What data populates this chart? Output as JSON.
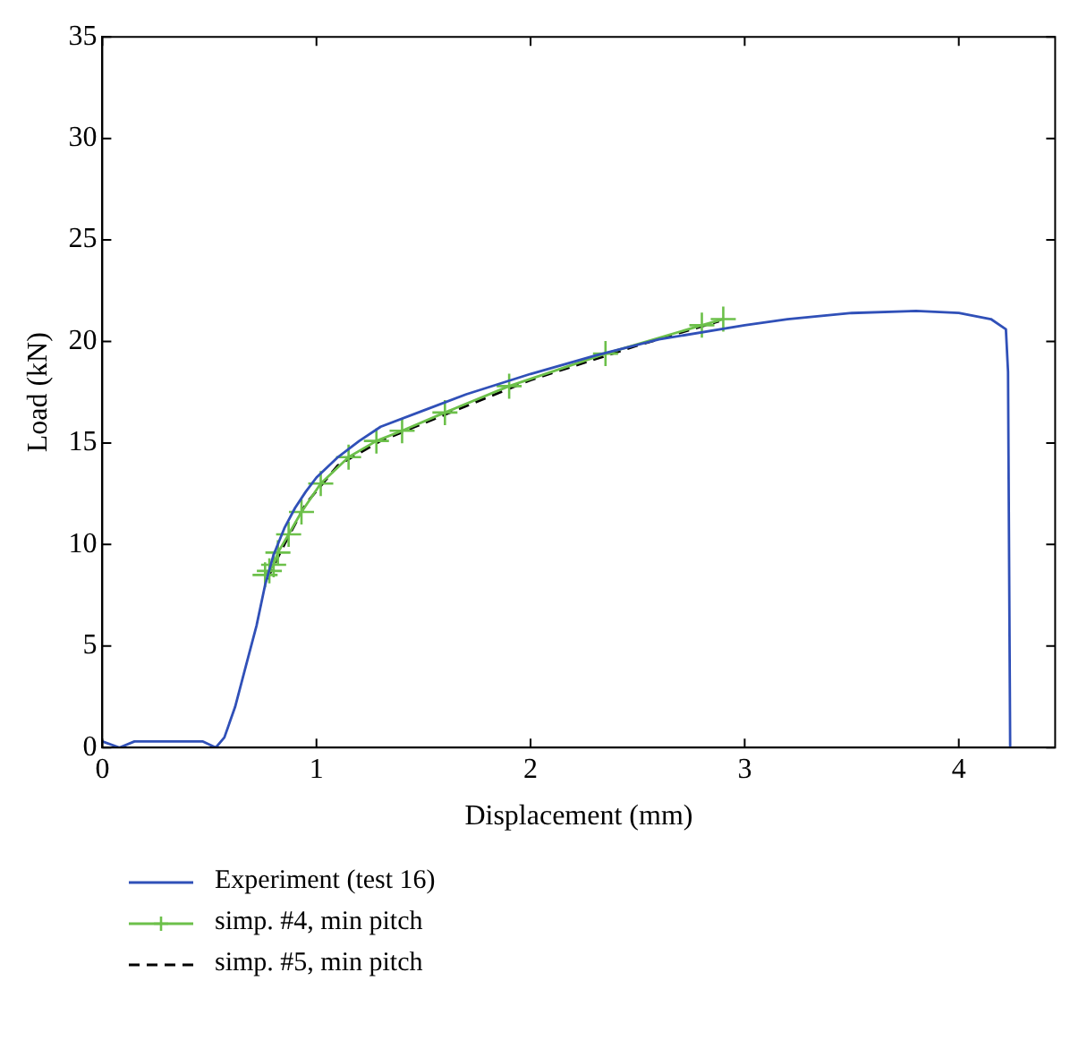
{
  "chart_data": {
    "type": "line",
    "xlabel": "Displacement (mm)",
    "ylabel": "Load (kN)",
    "xlim": [
      0,
      4.45
    ],
    "xticks": [
      0,
      1,
      2,
      3,
      4
    ],
    "ylim": [
      0,
      35
    ],
    "yticks": [
      0,
      5,
      10,
      15,
      20,
      25,
      30,
      35
    ],
    "grid": false,
    "legend": "bottom",
    "series": [
      {
        "name": "Experiment (test 16)",
        "color": "#3050b8",
        "marker": "none",
        "line_style": "solid",
        "x": [
          0,
          0.08,
          0.15,
          0.47,
          0.53,
          0.57,
          0.62,
          0.67,
          0.72,
          0.76,
          0.8,
          0.85,
          0.9,
          0.95,
          1.0,
          1.1,
          1.2,
          1.3,
          1.5,
          1.7,
          2.0,
          2.3,
          2.6,
          3.0,
          3.2,
          3.5,
          3.8,
          4.0,
          4.15,
          4.22,
          4.23,
          4.24
        ],
        "values": [
          0.3,
          0,
          0.3,
          0.3,
          0,
          0.5,
          2,
          4,
          6,
          8,
          9.5,
          10.8,
          11.8,
          12.6,
          13.3,
          14.3,
          15.1,
          15.8,
          16.6,
          17.4,
          18.4,
          19.3,
          20.1,
          20.8,
          21.1,
          21.4,
          21.5,
          21.4,
          21.1,
          20.6,
          18.5,
          0
        ]
      },
      {
        "name": "simp. #4, min pitch",
        "color": "#6cc04a",
        "marker": "cross",
        "line_style": "solid",
        "x": [
          0.76,
          0.78,
          0.8,
          0.82,
          0.87,
          0.93,
          1.02,
          1.15,
          1.28,
          1.4,
          1.6,
          1.9,
          2.35,
          2.8,
          2.9
        ],
        "values": [
          8.5,
          8.7,
          9.0,
          9.6,
          10.5,
          11.6,
          13.0,
          14.3,
          15.1,
          15.6,
          16.5,
          17.8,
          19.4,
          20.8,
          21.1
        ]
      },
      {
        "name": "simp. #5, min pitch",
        "color": "#000000",
        "marker": "none",
        "line_style": "dashed",
        "x": [
          0.77,
          0.85,
          0.95,
          1.1,
          1.3,
          1.6,
          2.0,
          2.5,
          2.88
        ],
        "values": [
          8.3,
          10,
          12,
          13.9,
          15.1,
          16.4,
          18.1,
          19.8,
          21.0
        ]
      }
    ]
  }
}
